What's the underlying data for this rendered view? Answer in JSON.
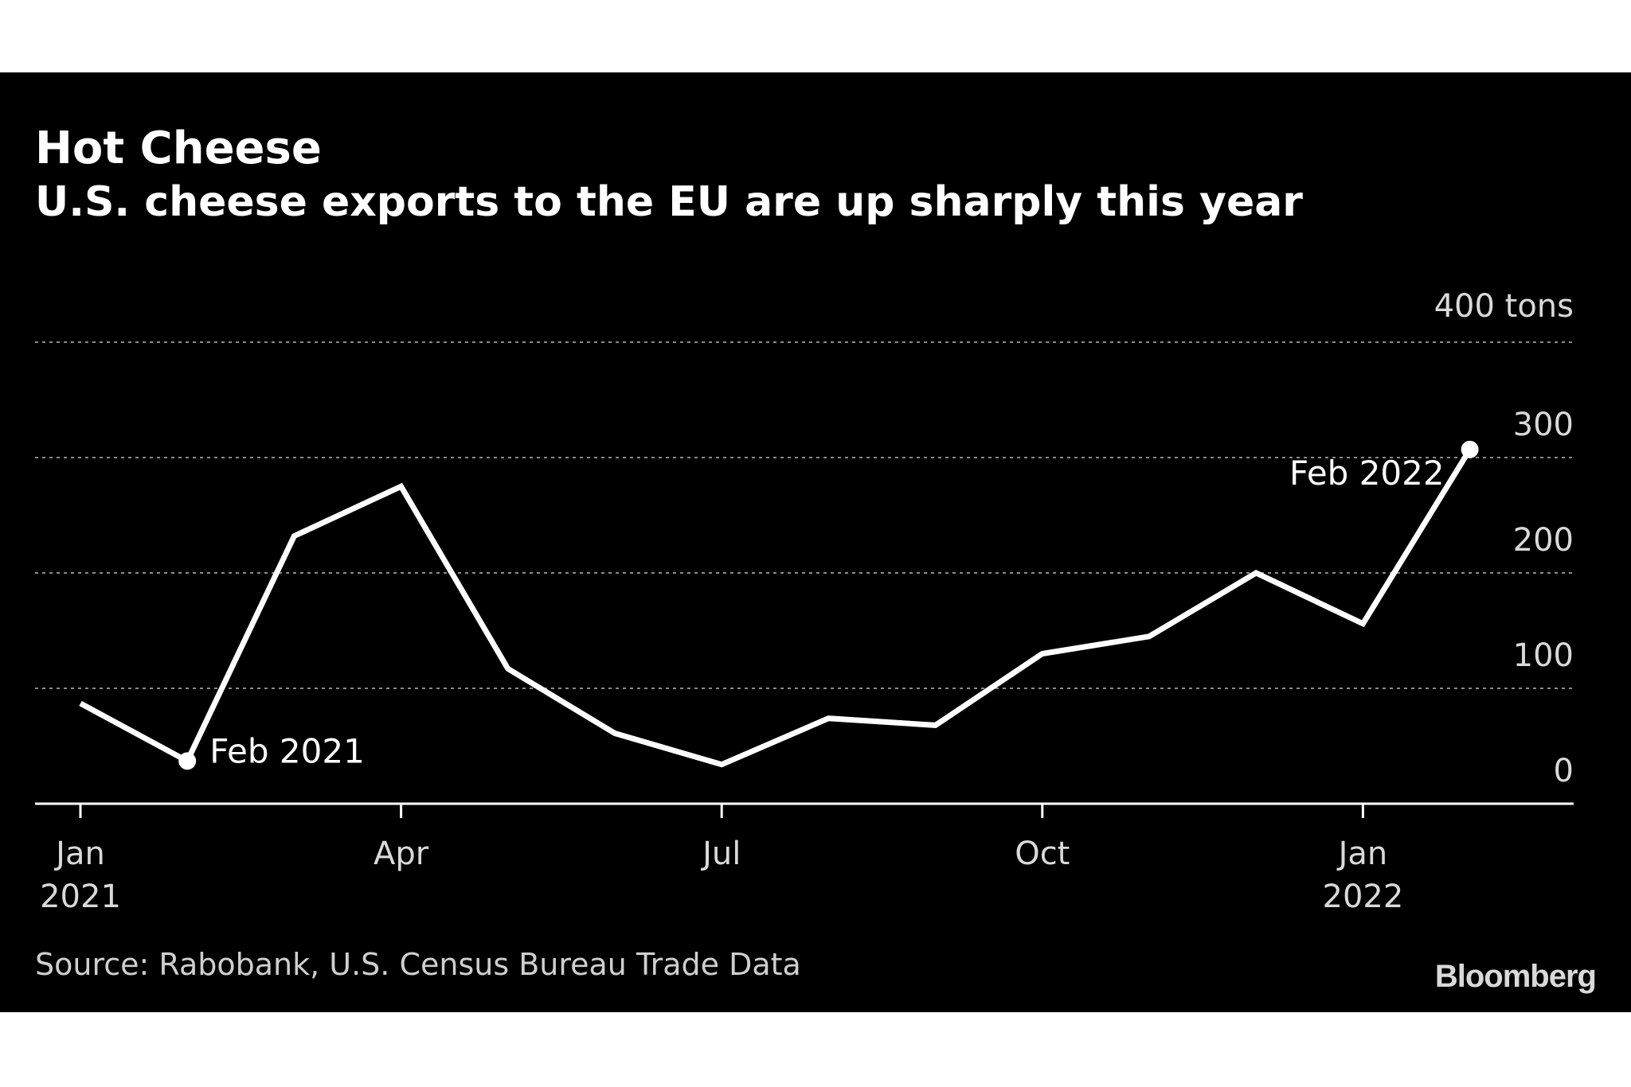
{
  "chart_data": {
    "type": "line",
    "title": "Hot Cheese",
    "subtitle": "U.S. cheese exports to the EU are up sharply this year",
    "source": "Source: Rabobank, U.S. Census Bureau Trade Data",
    "brand": "Bloomberg",
    "y_unit": "tons",
    "ylim": [
      0,
      400
    ],
    "y_ticks": [
      {
        "value": 0,
        "label": "0"
      },
      {
        "value": 100,
        "label": "100"
      },
      {
        "value": 200,
        "label": "200"
      },
      {
        "value": 300,
        "label": "300"
      },
      {
        "value": 400,
        "label": "400 tons"
      }
    ],
    "x_ticks": [
      {
        "x": "2021-01",
        "label": "Jan",
        "sublabel": "2021"
      },
      {
        "x": "2021-04",
        "label": "Apr",
        "sublabel": ""
      },
      {
        "x": "2021-07",
        "label": "Jul",
        "sublabel": ""
      },
      {
        "x": "2021-10",
        "label": "Oct",
        "sublabel": ""
      },
      {
        "x": "2022-01",
        "label": "Jan",
        "sublabel": "2022"
      }
    ],
    "grid": true,
    "series": [
      {
        "color": "#ffffff",
        "points": [
          {
            "x": "2021-01",
            "y": 87
          },
          {
            "x": "2021-02",
            "y": 37
          },
          {
            "x": "2021-03",
            "y": 232
          },
          {
            "x": "2021-04",
            "y": 275
          },
          {
            "x": "2021-05",
            "y": 117
          },
          {
            "x": "2021-06",
            "y": 61
          },
          {
            "x": "2021-07",
            "y": 34
          },
          {
            "x": "2021-08",
            "y": 74
          },
          {
            "x": "2021-09",
            "y": 68
          },
          {
            "x": "2021-10",
            "y": 130
          },
          {
            "x": "2021-11",
            "y": 145
          },
          {
            "x": "2021-12",
            "y": 200
          },
          {
            "x": "2022-01",
            "y": 156
          },
          {
            "x": "2022-02",
            "y": 307
          }
        ]
      }
    ],
    "annotations": [
      {
        "x": "2021-02",
        "y": 37,
        "label": "Feb 2021",
        "side": "right"
      },
      {
        "x": "2022-02",
        "y": 307,
        "label": "Feb 2022",
        "side": "left"
      }
    ]
  }
}
